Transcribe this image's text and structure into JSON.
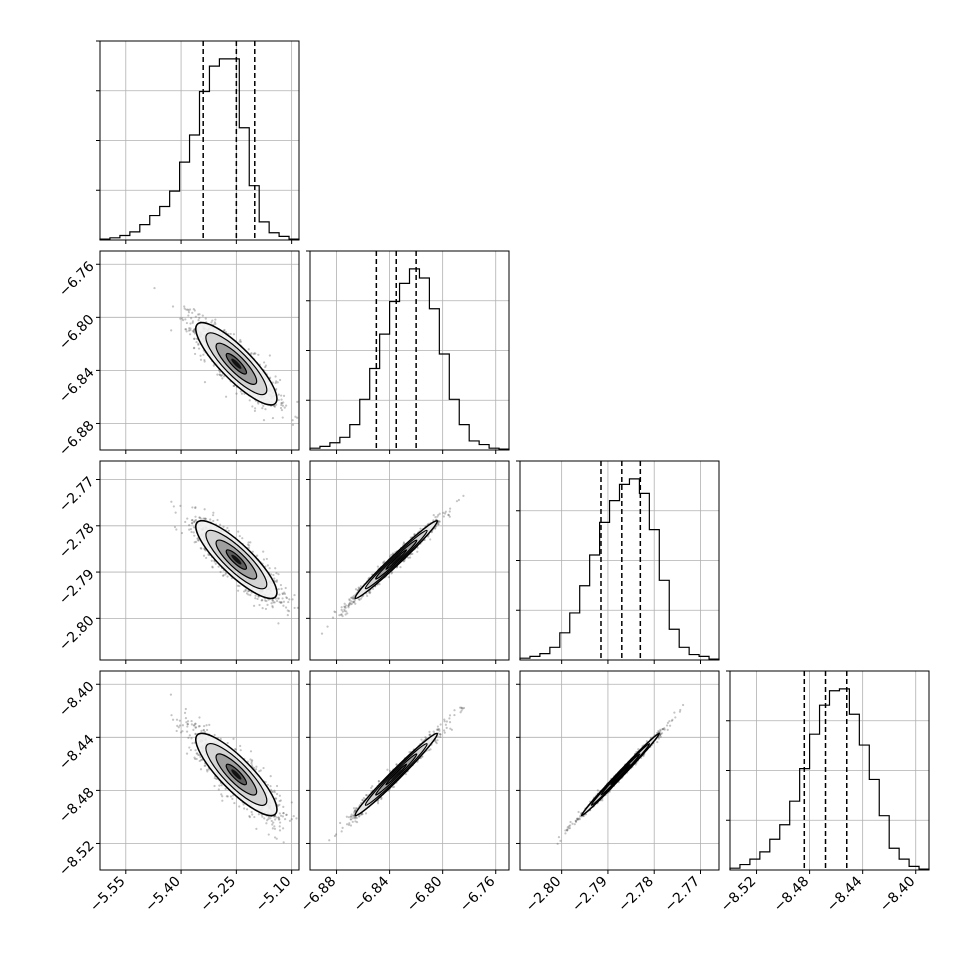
{
  "chart_data": {
    "type": "corner",
    "title": "",
    "grid": true,
    "n_params": 4,
    "params": [
      {
        "range": [
          -5.62,
          -5.08
        ],
        "ticks": [
          -5.55,
          -5.4,
          -5.25,
          -5.1
        ],
        "tick_labels": [
          "−5.55",
          "−5.40",
          "−5.25",
          "−5.10"
        ],
        "quantiles": [
          -5.34,
          -5.25,
          -5.2
        ],
        "center": -5.25,
        "sigma": 0.055
      },
      {
        "range": [
          -6.9,
          -6.75
        ],
        "ticks": [
          -6.88,
          -6.84,
          -6.8,
          -6.76
        ],
        "tick_labels": [
          "−6.88",
          "−6.84",
          "−6.80",
          "−6.76"
        ],
        "quantiles": [
          -6.85,
          -6.835,
          -6.82
        ],
        "center": -6.835,
        "sigma": 0.0155
      },
      {
        "range": [
          -2.809,
          -2.766
        ],
        "ticks": [
          -2.8,
          -2.79,
          -2.78,
          -2.77
        ],
        "tick_labels": [
          "−2.80",
          "−2.79",
          "−2.78",
          "−2.77"
        ],
        "quantiles": [
          -2.7915,
          -2.787,
          -2.783
        ],
        "center": -2.7873,
        "sigma": 0.0042
      },
      {
        "range": [
          -8.54,
          -8.39
        ],
        "ticks": [
          -8.52,
          -8.48,
          -8.44,
          -8.4
        ],
        "tick_labels": [
          "−8.52",
          "−8.48",
          "−8.44",
          "−8.40"
        ],
        "quantiles": [
          -8.484,
          -8.468,
          -8.452
        ],
        "center": -8.468,
        "sigma": 0.0155
      }
    ],
    "histograms": [
      [
        0.005,
        0.012,
        0.025,
        0.045,
        0.085,
        0.135,
        0.185,
        0.27,
        0.43,
        0.58,
        0.82,
        0.96,
        1.0,
        1.0,
        0.62,
        0.3,
        0.1,
        0.04,
        0.02,
        0.005
      ],
      [
        0.01,
        0.02,
        0.04,
        0.07,
        0.14,
        0.28,
        0.45,
        0.64,
        0.82,
        0.92,
        1.0,
        0.95,
        0.78,
        0.53,
        0.28,
        0.14,
        0.05,
        0.03,
        0.01,
        0.005
      ],
      [
        0.01,
        0.02,
        0.035,
        0.07,
        0.15,
        0.26,
        0.41,
        0.58,
        0.76,
        0.88,
        0.97,
        1.0,
        0.92,
        0.72,
        0.44,
        0.17,
        0.07,
        0.03,
        0.02,
        0.005
      ],
      [
        0.01,
        0.03,
        0.06,
        0.1,
        0.17,
        0.25,
        0.38,
        0.56,
        0.75,
        0.91,
        0.99,
        1.0,
        0.86,
        0.69,
        0.5,
        0.3,
        0.12,
        0.06,
        0.02,
        0.005
      ]
    ],
    "pairs": [
      {
        "row": 1,
        "col": 0,
        "correlation": -0.85
      },
      {
        "row": 2,
        "col": 0,
        "correlation": -0.85
      },
      {
        "row": 2,
        "col": 1,
        "correlation": 0.985
      },
      {
        "row": 3,
        "col": 0,
        "correlation": -0.85
      },
      {
        "row": 3,
        "col": 1,
        "correlation": 0.985
      },
      {
        "row": 3,
        "col": 2,
        "correlation": 0.995
      }
    ],
    "contour_levels_sigma": [
      0.5,
      1.0,
      1.5,
      2.0
    ]
  }
}
